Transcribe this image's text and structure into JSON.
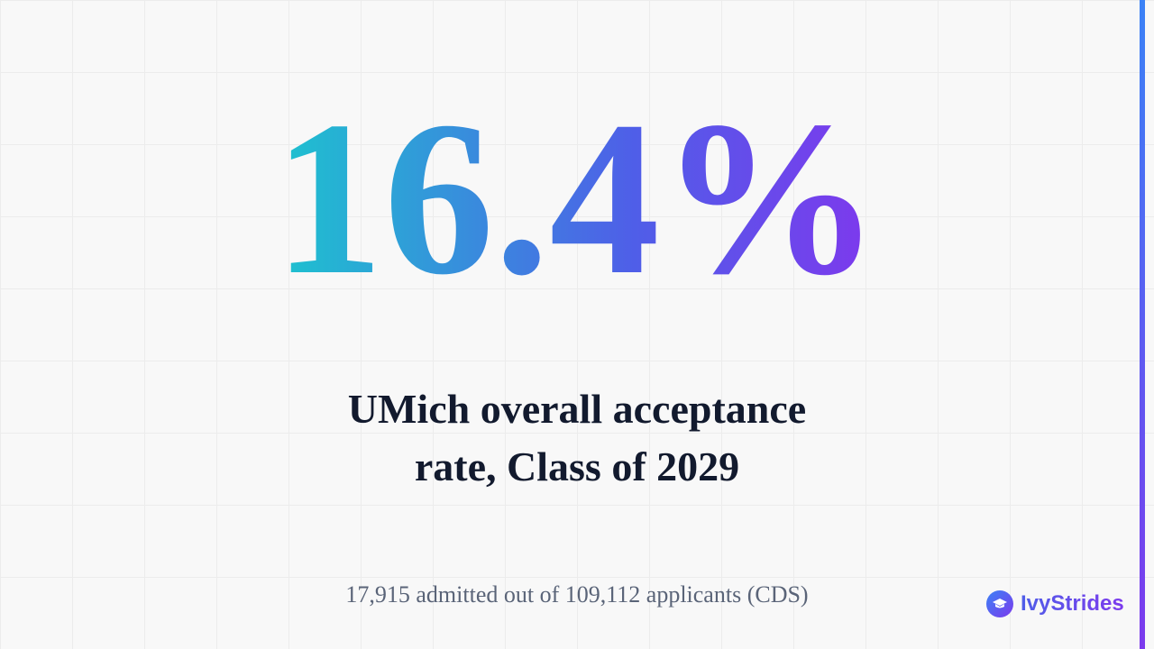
{
  "headline": "16.4%",
  "caption": "UMich overall acceptance rate, Class of 2029",
  "footnote": "17,915 admitted out of 109,112 applicants (CDS)",
  "brand": "IvyStrides"
}
